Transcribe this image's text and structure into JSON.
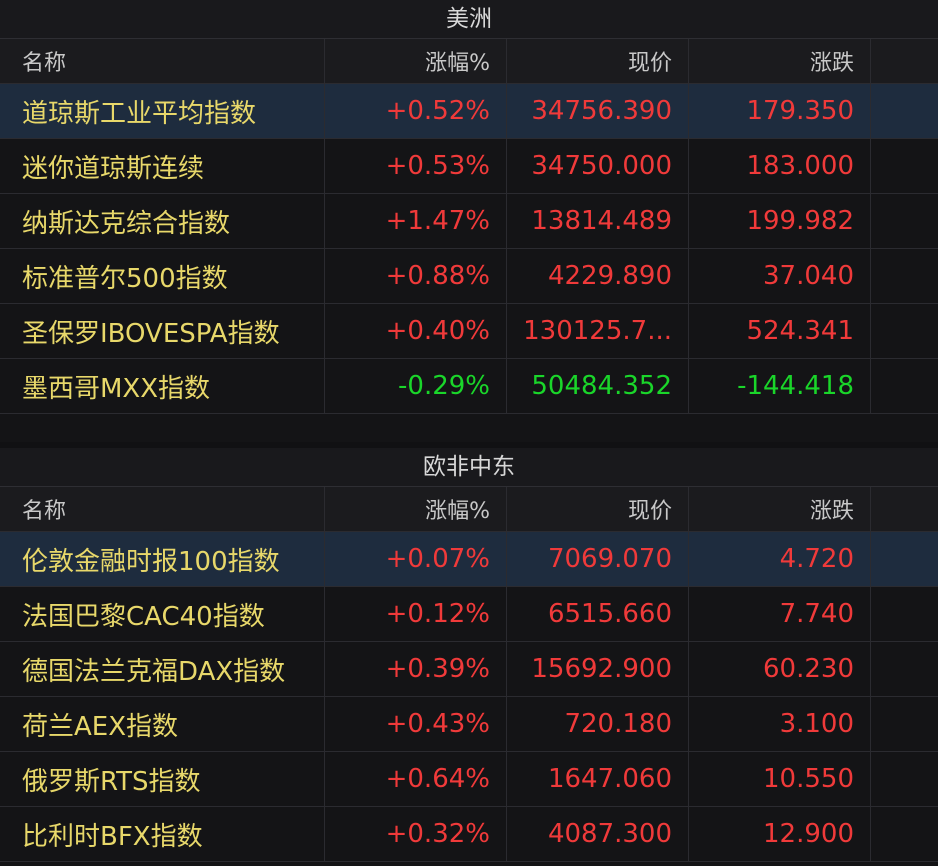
{
  "americas": {
    "title": "美洲",
    "headers": {
      "name": "名称",
      "pct": "涨幅%",
      "price": "现价",
      "change": "涨跌"
    },
    "rows": [
      {
        "name": "道琼斯工业平均指数",
        "pct": "+0.52%",
        "price": "34756.390",
        "change": "179.350"
      },
      {
        "name": "迷你道琼斯连续",
        "pct": "+0.53%",
        "price": "34750.000",
        "change": "183.000"
      },
      {
        "name": "纳斯达克综合指数",
        "pct": "+1.47%",
        "price": "13814.489",
        "change": "199.982"
      },
      {
        "name": "标准普尔500指数",
        "pct": "+0.88%",
        "price": "4229.890",
        "change": "37.040"
      },
      {
        "name": "圣保罗IBOVESPA指数",
        "pct": "+0.40%",
        "price": "130125.7...",
        "change": "524.341"
      },
      {
        "name": "墨西哥MXX指数",
        "pct": "-0.29%",
        "price": "50484.352",
        "change": "-144.418"
      }
    ]
  },
  "emea": {
    "title": "欧非中东",
    "headers": {
      "name": "名称",
      "pct": "涨幅%",
      "price": "现价",
      "change": "涨跌"
    },
    "rows": [
      {
        "name": "伦敦金融时报100指数",
        "pct": "+0.07%",
        "price": "7069.070",
        "change": "4.720"
      },
      {
        "name": "法国巴黎CAC40指数",
        "pct": "+0.12%",
        "price": "6515.660",
        "change": "7.740"
      },
      {
        "name": "德国法兰克福DAX指数",
        "pct": "+0.39%",
        "price": "15692.900",
        "change": "60.230"
      },
      {
        "name": "荷兰AEX指数",
        "pct": "+0.43%",
        "price": "720.180",
        "change": "3.100"
      },
      {
        "name": "俄罗斯RTS指数",
        "pct": "+0.64%",
        "price": "1647.060",
        "change": "10.550"
      },
      {
        "name": "比利时BFX指数",
        "pct": "+0.32%",
        "price": "4087.300",
        "change": "12.900"
      }
    ]
  },
  "colors": {
    "up": "#f03a3a",
    "down": "#1ad62a",
    "name": "#e8d86a",
    "selected_row": "#1e2c3e"
  }
}
